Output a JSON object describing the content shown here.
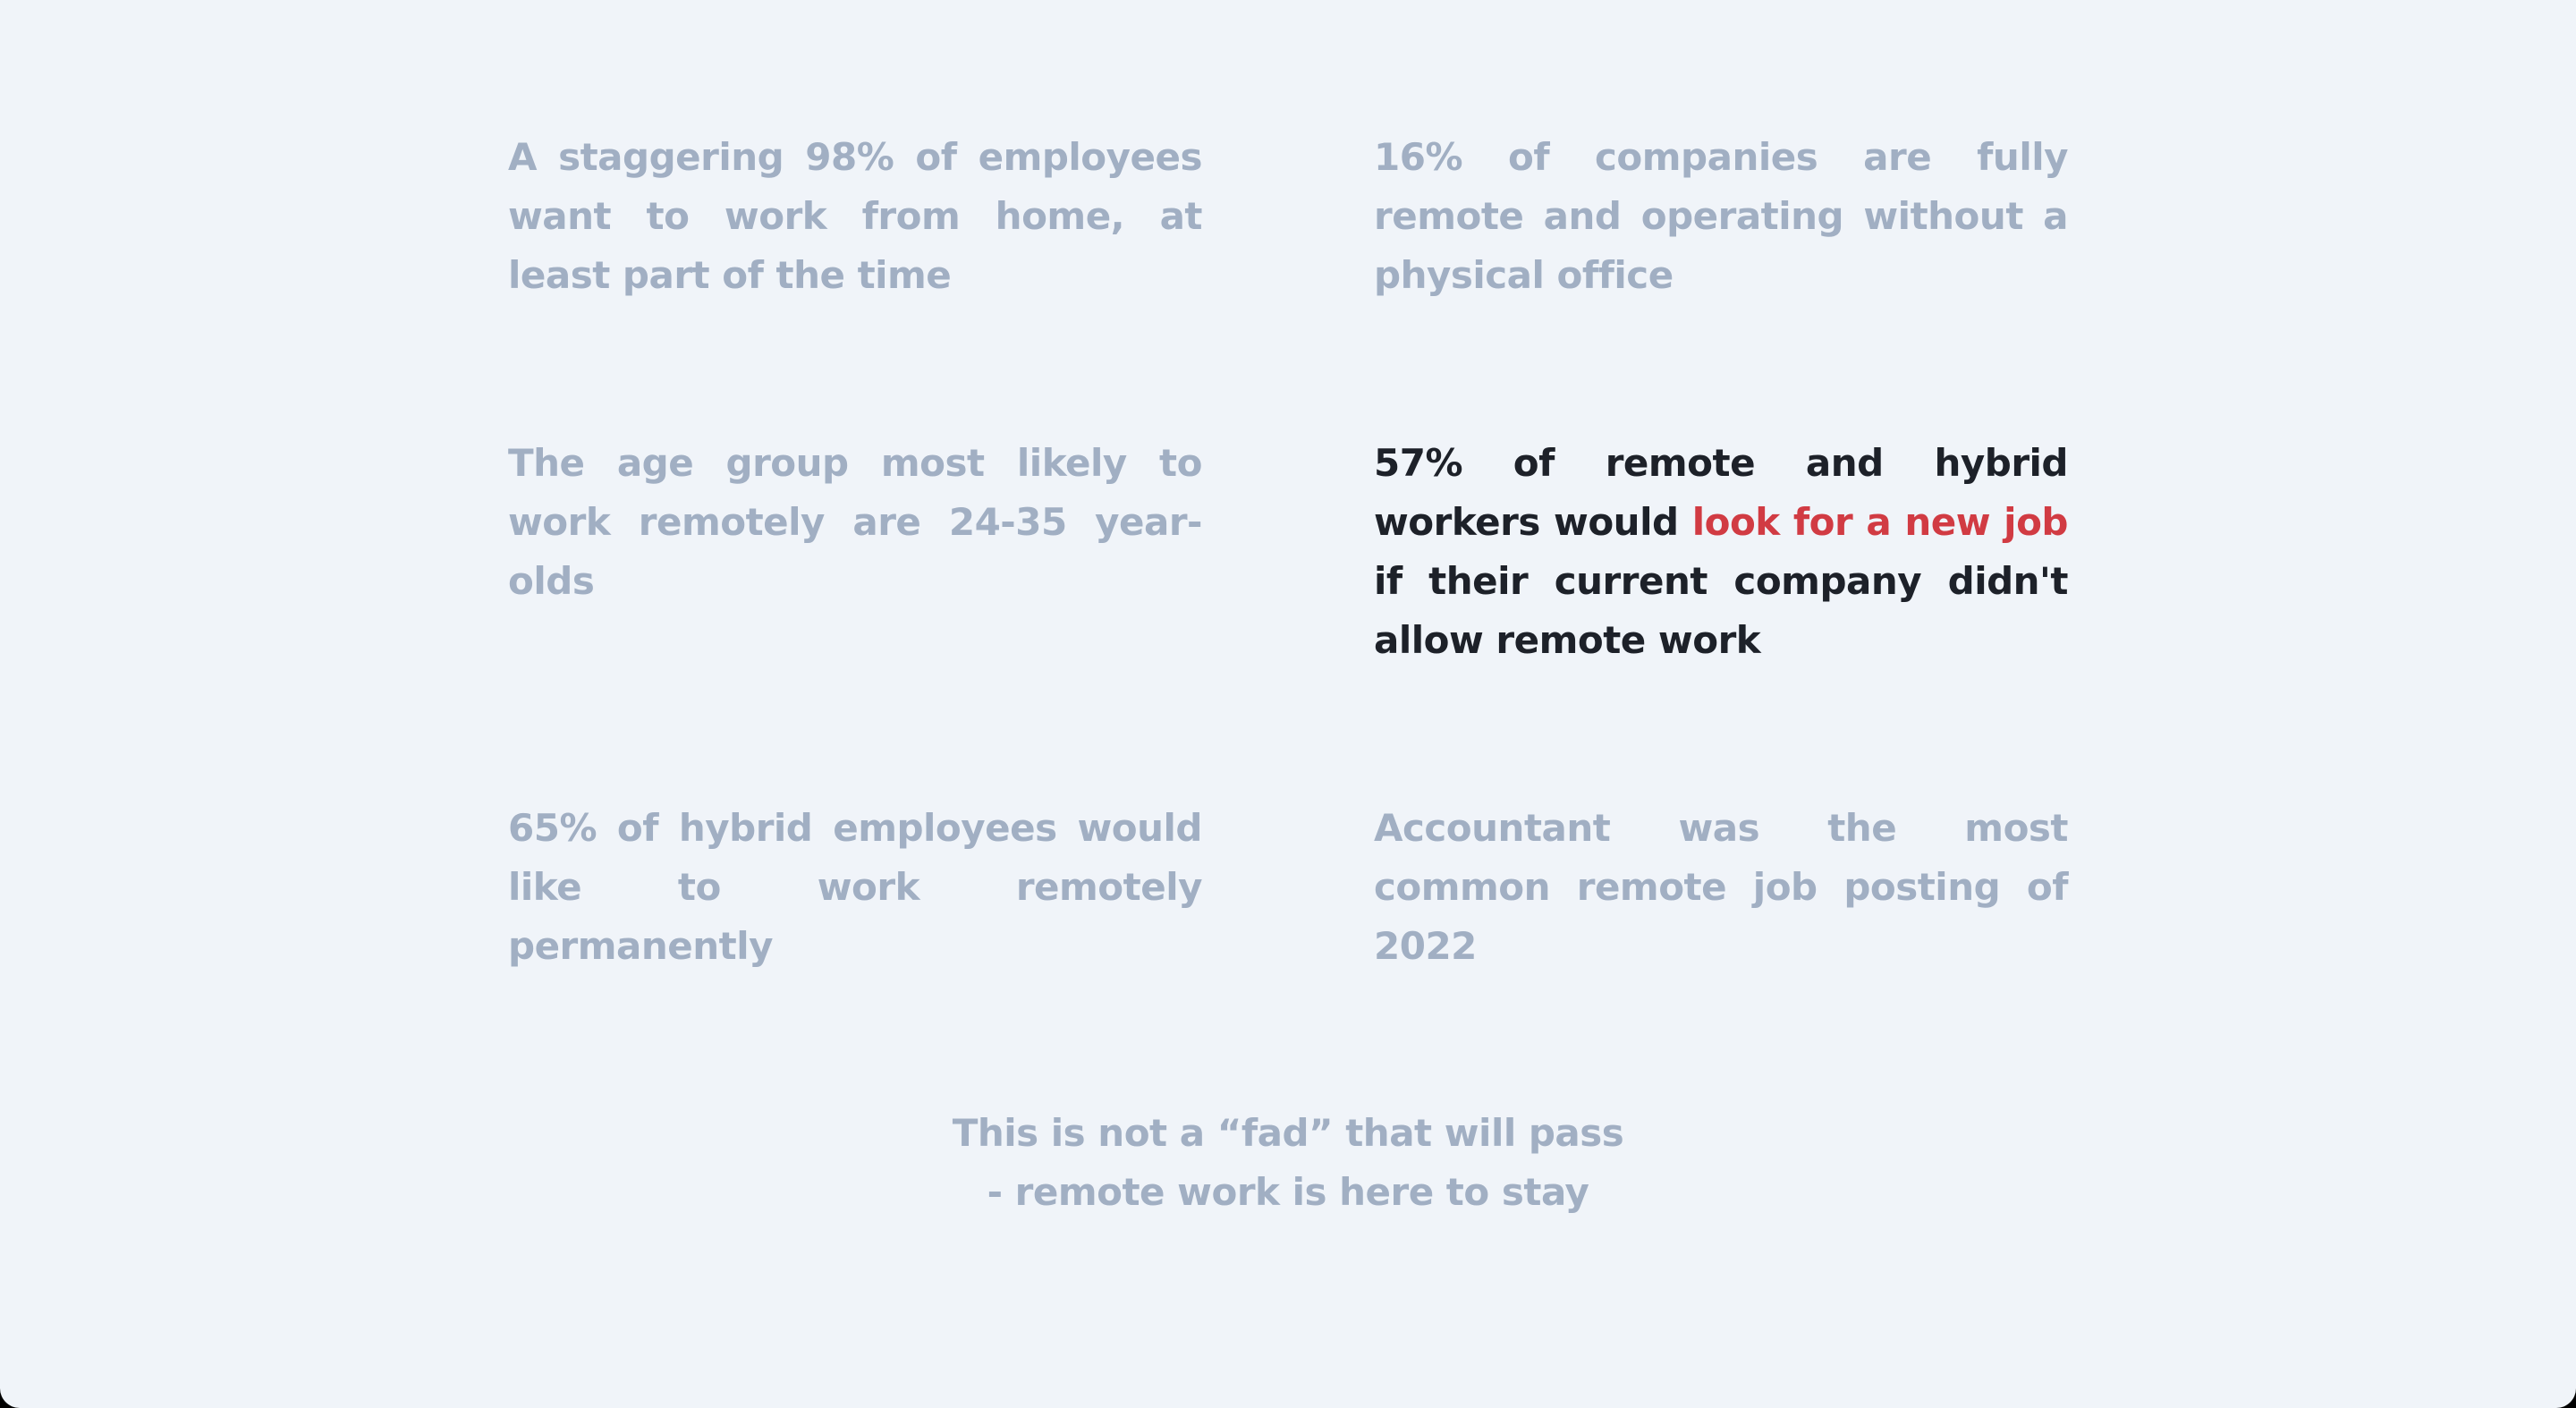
{
  "stats": {
    "stat_1": "A staggering 98% of employees want to work from home, at least part of the time",
    "stat_2": "16% of companies are fully remote and operating without a physical office",
    "stat_3": "The age group most likely to work remotely are 24-35 year-olds",
    "stat_4": {
      "before": "57% of remote and hybrid workers would ",
      "highlight": "look for a new job",
      "after": " if their current company didn't allow remote work"
    },
    "stat_5": "65% of hybrid employees would like to work remotely permanently",
    "stat_6": "Accountant was the most common remote job posting of 2022"
  },
  "closing": {
    "line_1": "This is not a “fad” that will pass",
    "line_2": "- remote work is here to stay"
  },
  "colors": {
    "background": "#f0f4f9",
    "muted_text": "#a1afc3",
    "active_text": "#1d2129",
    "highlight": "#d13b43"
  }
}
